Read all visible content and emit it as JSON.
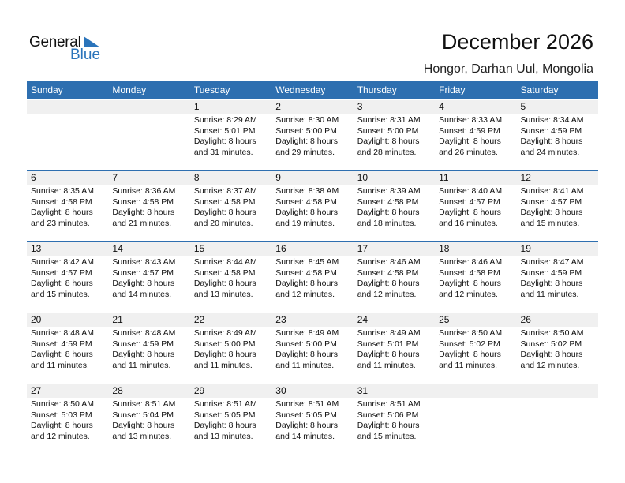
{
  "logo": {
    "word1": "General",
    "word2": "Blue",
    "color": "#2a74bb"
  },
  "title": "December 2026",
  "location": "Hongor, Darhan Uul, Mongolia",
  "header_color": "#2e6fb0",
  "days": [
    "Sunday",
    "Monday",
    "Tuesday",
    "Wednesday",
    "Thursday",
    "Friday",
    "Saturday"
  ],
  "weeks": [
    [
      null,
      null,
      {
        "day": "1",
        "sunrise": "Sunrise: 8:29 AM",
        "sunset": "Sunset: 5:01 PM",
        "daylight1": "Daylight: 8 hours",
        "daylight2": "and 31 minutes."
      },
      {
        "day": "2",
        "sunrise": "Sunrise: 8:30 AM",
        "sunset": "Sunset: 5:00 PM",
        "daylight1": "Daylight: 8 hours",
        "daylight2": "and 29 minutes."
      },
      {
        "day": "3",
        "sunrise": "Sunrise: 8:31 AM",
        "sunset": "Sunset: 5:00 PM",
        "daylight1": "Daylight: 8 hours",
        "daylight2": "and 28 minutes."
      },
      {
        "day": "4",
        "sunrise": "Sunrise: 8:33 AM",
        "sunset": "Sunset: 4:59 PM",
        "daylight1": "Daylight: 8 hours",
        "daylight2": "and 26 minutes."
      },
      {
        "day": "5",
        "sunrise": "Sunrise: 8:34 AM",
        "sunset": "Sunset: 4:59 PM",
        "daylight1": "Daylight: 8 hours",
        "daylight2": "and 24 minutes."
      }
    ],
    [
      {
        "day": "6",
        "sunrise": "Sunrise: 8:35 AM",
        "sunset": "Sunset: 4:58 PM",
        "daylight1": "Daylight: 8 hours",
        "daylight2": "and 23 minutes."
      },
      {
        "day": "7",
        "sunrise": "Sunrise: 8:36 AM",
        "sunset": "Sunset: 4:58 PM",
        "daylight1": "Daylight: 8 hours",
        "daylight2": "and 21 minutes."
      },
      {
        "day": "8",
        "sunrise": "Sunrise: 8:37 AM",
        "sunset": "Sunset: 4:58 PM",
        "daylight1": "Daylight: 8 hours",
        "daylight2": "and 20 minutes."
      },
      {
        "day": "9",
        "sunrise": "Sunrise: 8:38 AM",
        "sunset": "Sunset: 4:58 PM",
        "daylight1": "Daylight: 8 hours",
        "daylight2": "and 19 minutes."
      },
      {
        "day": "10",
        "sunrise": "Sunrise: 8:39 AM",
        "sunset": "Sunset: 4:58 PM",
        "daylight1": "Daylight: 8 hours",
        "daylight2": "and 18 minutes."
      },
      {
        "day": "11",
        "sunrise": "Sunrise: 8:40 AM",
        "sunset": "Sunset: 4:57 PM",
        "daylight1": "Daylight: 8 hours",
        "daylight2": "and 16 minutes."
      },
      {
        "day": "12",
        "sunrise": "Sunrise: 8:41 AM",
        "sunset": "Sunset: 4:57 PM",
        "daylight1": "Daylight: 8 hours",
        "daylight2": "and 15 minutes."
      }
    ],
    [
      {
        "day": "13",
        "sunrise": "Sunrise: 8:42 AM",
        "sunset": "Sunset: 4:57 PM",
        "daylight1": "Daylight: 8 hours",
        "daylight2": "and 15 minutes."
      },
      {
        "day": "14",
        "sunrise": "Sunrise: 8:43 AM",
        "sunset": "Sunset: 4:57 PM",
        "daylight1": "Daylight: 8 hours",
        "daylight2": "and 14 minutes."
      },
      {
        "day": "15",
        "sunrise": "Sunrise: 8:44 AM",
        "sunset": "Sunset: 4:58 PM",
        "daylight1": "Daylight: 8 hours",
        "daylight2": "and 13 minutes."
      },
      {
        "day": "16",
        "sunrise": "Sunrise: 8:45 AM",
        "sunset": "Sunset: 4:58 PM",
        "daylight1": "Daylight: 8 hours",
        "daylight2": "and 12 minutes."
      },
      {
        "day": "17",
        "sunrise": "Sunrise: 8:46 AM",
        "sunset": "Sunset: 4:58 PM",
        "daylight1": "Daylight: 8 hours",
        "daylight2": "and 12 minutes."
      },
      {
        "day": "18",
        "sunrise": "Sunrise: 8:46 AM",
        "sunset": "Sunset: 4:58 PM",
        "daylight1": "Daylight: 8 hours",
        "daylight2": "and 12 minutes."
      },
      {
        "day": "19",
        "sunrise": "Sunrise: 8:47 AM",
        "sunset": "Sunset: 4:59 PM",
        "daylight1": "Daylight: 8 hours",
        "daylight2": "and 11 minutes."
      }
    ],
    [
      {
        "day": "20",
        "sunrise": "Sunrise: 8:48 AM",
        "sunset": "Sunset: 4:59 PM",
        "daylight1": "Daylight: 8 hours",
        "daylight2": "and 11 minutes."
      },
      {
        "day": "21",
        "sunrise": "Sunrise: 8:48 AM",
        "sunset": "Sunset: 4:59 PM",
        "daylight1": "Daylight: 8 hours",
        "daylight2": "and 11 minutes."
      },
      {
        "day": "22",
        "sunrise": "Sunrise: 8:49 AM",
        "sunset": "Sunset: 5:00 PM",
        "daylight1": "Daylight: 8 hours",
        "daylight2": "and 11 minutes."
      },
      {
        "day": "23",
        "sunrise": "Sunrise: 8:49 AM",
        "sunset": "Sunset: 5:00 PM",
        "daylight1": "Daylight: 8 hours",
        "daylight2": "and 11 minutes."
      },
      {
        "day": "24",
        "sunrise": "Sunrise: 8:49 AM",
        "sunset": "Sunset: 5:01 PM",
        "daylight1": "Daylight: 8 hours",
        "daylight2": "and 11 minutes."
      },
      {
        "day": "25",
        "sunrise": "Sunrise: 8:50 AM",
        "sunset": "Sunset: 5:02 PM",
        "daylight1": "Daylight: 8 hours",
        "daylight2": "and 11 minutes."
      },
      {
        "day": "26",
        "sunrise": "Sunrise: 8:50 AM",
        "sunset": "Sunset: 5:02 PM",
        "daylight1": "Daylight: 8 hours",
        "daylight2": "and 12 minutes."
      }
    ],
    [
      {
        "day": "27",
        "sunrise": "Sunrise: 8:50 AM",
        "sunset": "Sunset: 5:03 PM",
        "daylight1": "Daylight: 8 hours",
        "daylight2": "and 12 minutes."
      },
      {
        "day": "28",
        "sunrise": "Sunrise: 8:51 AM",
        "sunset": "Sunset: 5:04 PM",
        "daylight1": "Daylight: 8 hours",
        "daylight2": "and 13 minutes."
      },
      {
        "day": "29",
        "sunrise": "Sunrise: 8:51 AM",
        "sunset": "Sunset: 5:05 PM",
        "daylight1": "Daylight: 8 hours",
        "daylight2": "and 13 minutes."
      },
      {
        "day": "30",
        "sunrise": "Sunrise: 8:51 AM",
        "sunset": "Sunset: 5:05 PM",
        "daylight1": "Daylight: 8 hours",
        "daylight2": "and 14 minutes."
      },
      {
        "day": "31",
        "sunrise": "Sunrise: 8:51 AM",
        "sunset": "Sunset: 5:06 PM",
        "daylight1": "Daylight: 8 hours",
        "daylight2": "and 15 minutes."
      },
      null,
      null
    ]
  ]
}
